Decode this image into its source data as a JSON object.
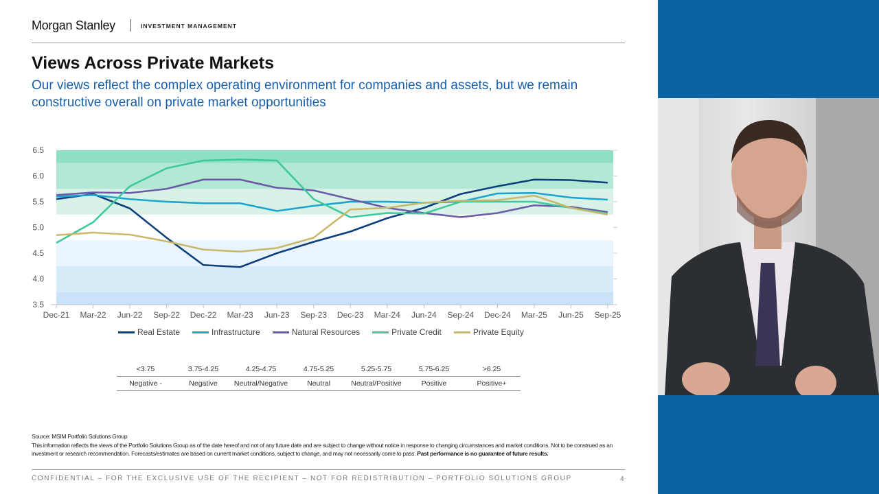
{
  "header": {
    "brand": "Morgan Stanley",
    "division": "INVESTMENT MANAGEMENT"
  },
  "title": "Views Across Private Markets",
  "subtitle": "Our views reflect the complex operating environment for companies and assets, but we remain constructive overall on private market opportunities",
  "chart_data": {
    "type": "line",
    "x": [
      "Dec-21",
      "Mar-22",
      "Jun-22",
      "Sep-22",
      "Dec-22",
      "Mar-23",
      "Jun-23",
      "Sep-23",
      "Dec-23",
      "Mar-24",
      "Jun-24",
      "Sep-24",
      "Dec-24",
      "Mar-25",
      "Jun-25",
      "Sep-25"
    ],
    "ylim": [
      3.5,
      6.5
    ],
    "yticks": [
      "3.5",
      "4.0",
      "4.5",
      "5.0",
      "5.5",
      "6.0",
      "6.5"
    ],
    "legend_position": "bottom",
    "bands": [
      {
        "from": 3.5,
        "to": 3.75,
        "color": "#c9e2f7"
      },
      {
        "from": 3.75,
        "to": 4.25,
        "color": "#d8ebf9"
      },
      {
        "from": 4.25,
        "to": 4.75,
        "color": "#e9f4fc"
      },
      {
        "from": 4.75,
        "to": 5.25,
        "color": "#ffffff"
      },
      {
        "from": 5.25,
        "to": 5.75,
        "color": "#d9f2e8"
      },
      {
        "from": 5.75,
        "to": 6.25,
        "color": "#b3e8d4"
      },
      {
        "from": 6.25,
        "to": 6.5,
        "color": "#8fdfc2"
      }
    ],
    "series": [
      {
        "name": "Real Estate",
        "color": "#0d3f7a",
        "values": [
          5.55,
          5.65,
          5.37,
          4.8,
          4.27,
          4.23,
          4.5,
          4.72,
          4.92,
          5.18,
          5.38,
          5.65,
          5.8,
          5.93,
          5.92,
          5.87
        ]
      },
      {
        "name": "Infrastructure",
        "color": "#1ba3cf",
        "values": [
          5.6,
          5.63,
          5.55,
          5.5,
          5.47,
          5.47,
          5.32,
          5.42,
          5.5,
          5.5,
          5.48,
          5.5,
          5.66,
          5.67,
          5.58,
          5.54
        ]
      },
      {
        "name": "Natural Resources",
        "color": "#6a5aa8",
        "values": [
          5.63,
          5.68,
          5.67,
          5.75,
          5.93,
          5.93,
          5.77,
          5.72,
          5.55,
          5.38,
          5.28,
          5.2,
          5.28,
          5.43,
          5.4,
          5.3
        ]
      },
      {
        "name": "Private Credit",
        "color": "#3ec99a",
        "values": [
          4.7,
          5.1,
          5.8,
          6.15,
          6.3,
          6.32,
          6.3,
          5.55,
          5.2,
          5.28,
          5.27,
          5.5,
          5.5,
          5.5,
          5.38,
          5.27
        ]
      },
      {
        "name": "Private Equity",
        "color": "#c9b86a",
        "values": [
          4.85,
          4.9,
          4.86,
          4.73,
          4.57,
          4.53,
          4.6,
          4.8,
          5.35,
          5.38,
          5.48,
          5.52,
          5.53,
          5.62,
          5.38,
          5.25
        ]
      }
    ]
  },
  "key": {
    "ranges": [
      "<3.75",
      "3.75-4.25",
      "4.25-4.75",
      "4.75-5.25",
      "5.25-5.75",
      "5.75-6.25",
      ">6.25"
    ],
    "labels": [
      "Negative -",
      "Negative",
      "Neutral/Negative",
      "Neutral",
      "Neutral/Positive",
      "Positive",
      "Positive+"
    ]
  },
  "source": "Source: MSIM Portfolio Solutions Group",
  "disclaimer": "This information reflects the views of the Portfolio Solutions Group as of the date hereof and not of any future date and are subject to change without notice in response to changing circumstances and market conditions. Not to be construed as an investment or research recommendation. Forecasts/estimates are based on current market conditions, subject to change, and may not necessarily come to pass.",
  "disclaimer_bold": "Past performance is no guarantee of future results.",
  "footer": {
    "confidential": "CONFIDENTIAL – FOR THE EXCLUSIVE USE OF THE RECIPIENT – NOT FOR REDISTRIBUTION – PORTFOLIO SOLUTIONS GROUP",
    "page": "4"
  },
  "colors": {
    "brand_blue": "#0b63a3",
    "subtitle": "#1a5fa8"
  }
}
